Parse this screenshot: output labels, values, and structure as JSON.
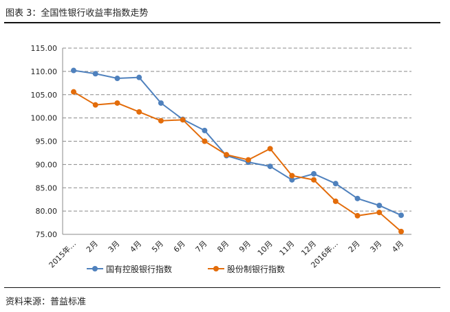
{
  "page": {
    "title": "图表 3：全国性银行收益率指数走势",
    "source": "资料来源：普益标准"
  },
  "chart_data": {
    "type": "line",
    "title": "",
    "categories": [
      "2015年…",
      "2月",
      "3月",
      "4月",
      "5月",
      "6月",
      "7月",
      "8月",
      "9月",
      "10月",
      "11月",
      "12月",
      "2016年…",
      "2月",
      "3月",
      "4月"
    ],
    "ylim": [
      75,
      115
    ],
    "yticks": [
      "75.00",
      "80.00",
      "85.00",
      "90.00",
      "95.00",
      "100.00",
      "105.00",
      "110.00",
      "115.00"
    ],
    "grid": true,
    "legend": "bottom",
    "series": [
      {
        "name": "国有控股银行指数",
        "color": "#4f81bd",
        "values": [
          110.2,
          109.5,
          108.5,
          108.7,
          103.2,
          99.7,
          97.3,
          91.9,
          90.5,
          89.6,
          86.7,
          88.0,
          85.9,
          82.7,
          81.2,
          79.1
        ]
      },
      {
        "name": "股份制银行指数",
        "color": "#e36c0a",
        "values": [
          105.6,
          102.8,
          103.2,
          101.3,
          99.4,
          99.6,
          95.0,
          92.1,
          91.0,
          93.4,
          87.6,
          86.7,
          82.1,
          79.0,
          79.7,
          75.6
        ]
      }
    ]
  }
}
